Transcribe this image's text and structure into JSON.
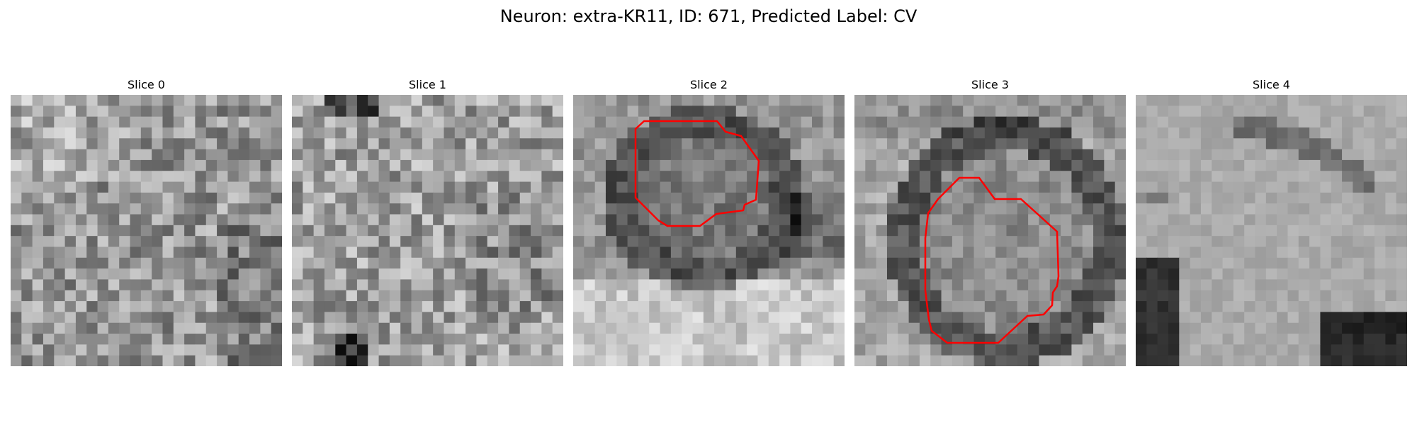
{
  "figure": {
    "title": "Neuron: extra-KR11, ID: 671, Predicted Label: CV"
  },
  "panels": [
    {
      "title": "Slice 0",
      "has_outline": false
    },
    {
      "title": "Slice 1",
      "has_outline": false
    },
    {
      "title": "Slice 2",
      "has_outline": true
    },
    {
      "title": "Slice 3",
      "has_outline": true
    },
    {
      "title": "Slice 4",
      "has_outline": false
    }
  ],
  "colors": {
    "outline": "#ff0000",
    "background": "#ffffff"
  }
}
